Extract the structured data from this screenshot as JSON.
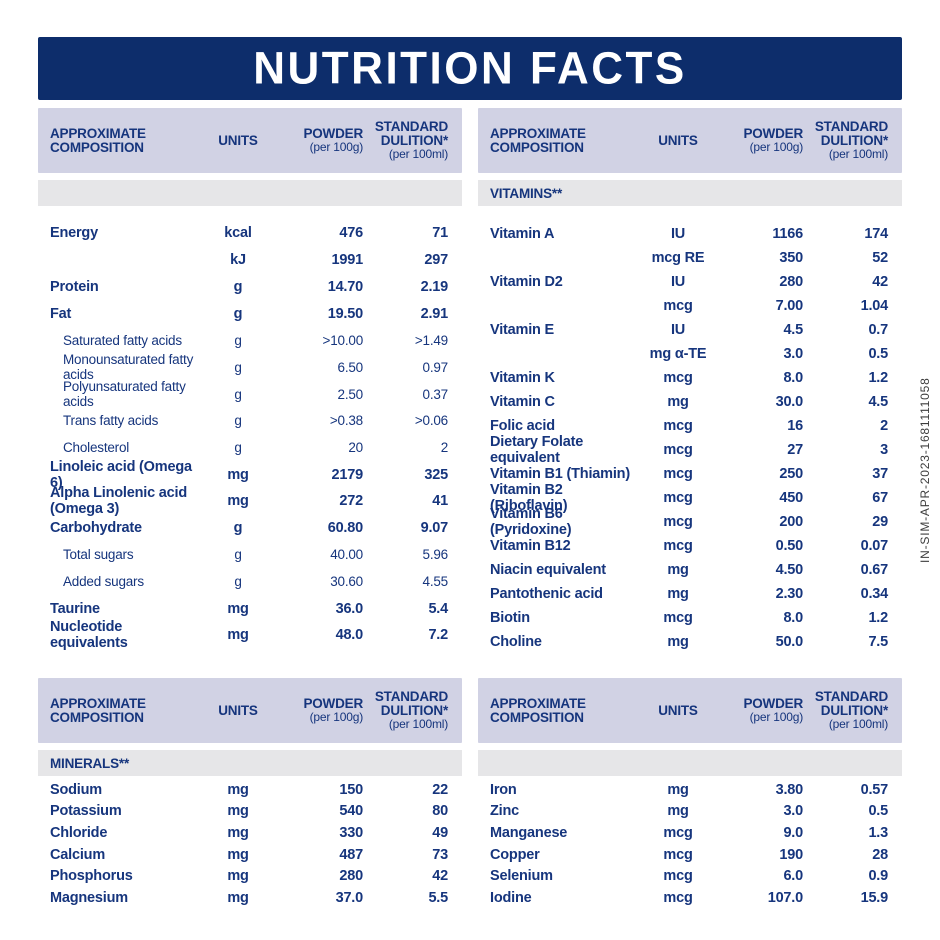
{
  "title": "NUTRITION FACTS",
  "side_code": "IN-SIM-APR-2023-1681111058",
  "colors": {
    "banner_bg": "#0d2d6b",
    "banner_text": "#ffffff",
    "table_header_bg": "#d1d2e4",
    "section_band_bg": "#e6e6e8",
    "text": "#16357d",
    "side_code_text": "#3d3d3d"
  },
  "header": {
    "approximate_composition": "APPROXIMATE COMPOSITION",
    "units": "UNITS",
    "powder_line1": "POWDER",
    "powder_line2": "(per 100g)",
    "dilution_line1": "STANDARD",
    "dilution_line2": "DULITION*",
    "dilution_line3": "(per 100ml)"
  },
  "tables": {
    "top_left": {
      "section_label": "",
      "rows": [
        {
          "name": "Energy",
          "unit": "kcal",
          "powder": "476",
          "dilution": "71",
          "style": "main"
        },
        {
          "name": "",
          "unit": "kJ",
          "powder": "1991",
          "dilution": "297",
          "style": "main"
        },
        {
          "name": "Protein",
          "unit": "g",
          "powder": "14.70",
          "dilution": "2.19",
          "style": "main"
        },
        {
          "name": "Fat",
          "unit": "g",
          "powder": "19.50",
          "dilution": "2.91",
          "style": "main"
        },
        {
          "name": "Saturated fatty acids",
          "unit": "g",
          "powder": ">10.00",
          "dilution": ">1.49",
          "style": "sub"
        },
        {
          "name": "Monounsaturated fatty acids",
          "unit": "g",
          "powder": "6.50",
          "dilution": "0.97",
          "style": "sub"
        },
        {
          "name": "Polyunsaturated fatty acids",
          "unit": "g",
          "powder": "2.50",
          "dilution": "0.37",
          "style": "sub"
        },
        {
          "name": "Trans fatty acids",
          "unit": "g",
          "powder": ">0.38",
          "dilution": ">0.06",
          "style": "sub"
        },
        {
          "name": "Cholesterol",
          "unit": "g",
          "powder": "20",
          "dilution": "2",
          "style": "sub"
        },
        {
          "name": "Linoleic acid (Omega 6)",
          "unit": "mg",
          "powder": "2179",
          "dilution": "325",
          "style": "main"
        },
        {
          "name": "Alpha Linolenic acid (Omega 3)",
          "unit": "mg",
          "powder": "272",
          "dilution": "41",
          "style": "main"
        },
        {
          "name": "Carbohydrate",
          "unit": "g",
          "powder": "60.80",
          "dilution": "9.07",
          "style": "main"
        },
        {
          "name": "Total sugars",
          "unit": "g",
          "powder": "40.00",
          "dilution": "5.96",
          "style": "sub"
        },
        {
          "name": "Added sugars",
          "unit": "g",
          "powder": "30.60",
          "dilution": "4.55",
          "style": "sub"
        },
        {
          "name": "Taurine",
          "unit": "mg",
          "powder": "36.0",
          "dilution": "5.4",
          "style": "main"
        },
        {
          "name": "Nucleotide equivalents",
          "unit": "mg",
          "powder": "48.0",
          "dilution": "7.2",
          "style": "main"
        }
      ]
    },
    "top_right": {
      "section_label": "VITAMINS**",
      "rows": [
        {
          "name": "Vitamin A",
          "unit": "IU",
          "powder": "1166",
          "dilution": "174",
          "style": "main"
        },
        {
          "name": "",
          "unit": "mcg RE",
          "powder": "350",
          "dilution": "52",
          "style": "main"
        },
        {
          "name": "Vitamin D2",
          "unit": "IU",
          "powder": "280",
          "dilution": "42",
          "style": "main"
        },
        {
          "name": "",
          "unit": "mcg",
          "powder": "7.00",
          "dilution": "1.04",
          "style": "main"
        },
        {
          "name": "Vitamin E",
          "unit": "IU",
          "powder": "4.5",
          "dilution": "0.7",
          "style": "main"
        },
        {
          "name": "",
          "unit": "mg α-TE",
          "powder": "3.0",
          "dilution": "0.5",
          "style": "main"
        },
        {
          "name": "Vitamin K",
          "unit": "mcg",
          "powder": "8.0",
          "dilution": "1.2",
          "style": "main"
        },
        {
          "name": "Vitamin C",
          "unit": "mg",
          "powder": "30.0",
          "dilution": "4.5",
          "style": "main"
        },
        {
          "name": "Folic acid",
          "unit": "mcg",
          "powder": "16",
          "dilution": "2",
          "style": "main"
        },
        {
          "name": "Dietary Folate equivalent",
          "unit": "mcg",
          "powder": "27",
          "dilution": "3",
          "style": "main"
        },
        {
          "name": "Vitamin B1 (Thiamin)",
          "unit": "mcg",
          "powder": "250",
          "dilution": "37",
          "style": "main"
        },
        {
          "name": "Vitamin B2 (Riboflavin)",
          "unit": "mcg",
          "powder": "450",
          "dilution": "67",
          "style": "main"
        },
        {
          "name": "Vitamin B6 (Pyridoxine)",
          "unit": "mcg",
          "powder": "200",
          "dilution": "29",
          "style": "main"
        },
        {
          "name": "Vitamin B12",
          "unit": "mcg",
          "powder": "0.50",
          "dilution": "0.07",
          "style": "main"
        },
        {
          "name": "Niacin equivalent",
          "unit": "mg",
          "powder": "4.50",
          "dilution": "0.67",
          "style": "main"
        },
        {
          "name": "Pantothenic acid",
          "unit": "mg",
          "powder": "2.30",
          "dilution": "0.34",
          "style": "main"
        },
        {
          "name": "Biotin",
          "unit": "mcg",
          "powder": "8.0",
          "dilution": "1.2",
          "style": "main"
        },
        {
          "name": "Choline",
          "unit": "mg",
          "powder": "50.0",
          "dilution": "7.5",
          "style": "main"
        }
      ]
    },
    "bottom_left": {
      "section_label": "MINERALS**",
      "rows": [
        {
          "name": "Sodium",
          "unit": "mg",
          "powder": "150",
          "dilution": "22",
          "style": "main"
        },
        {
          "name": "Potassium",
          "unit": "mg",
          "powder": "540",
          "dilution": "80",
          "style": "main"
        },
        {
          "name": "Chloride",
          "unit": "mg",
          "powder": "330",
          "dilution": "49",
          "style": "main"
        },
        {
          "name": "Calcium",
          "unit": "mg",
          "powder": "487",
          "dilution": "73",
          "style": "main"
        },
        {
          "name": "Phosphorus",
          "unit": "mg",
          "powder": "280",
          "dilution": "42",
          "style": "main"
        },
        {
          "name": "Magnesium",
          "unit": "mg",
          "powder": "37.0",
          "dilution": "5.5",
          "style": "main"
        }
      ]
    },
    "bottom_right": {
      "section_label": "",
      "rows": [
        {
          "name": "Iron",
          "unit": "mg",
          "powder": "3.80",
          "dilution": "0.57",
          "style": "main"
        },
        {
          "name": "Zinc",
          "unit": "mg",
          "powder": "3.0",
          "dilution": "0.5",
          "style": "main"
        },
        {
          "name": "Manganese",
          "unit": "mcg",
          "powder": "9.0",
          "dilution": "1.3",
          "style": "main"
        },
        {
          "name": "Copper",
          "unit": "mcg",
          "powder": "190",
          "dilution": "28",
          "style": "main"
        },
        {
          "name": "Selenium",
          "unit": "mcg",
          "powder": "6.0",
          "dilution": "0.9",
          "style": "main"
        },
        {
          "name": "Iodine",
          "unit": "mcg",
          "powder": "107.0",
          "dilution": "15.9",
          "style": "main"
        }
      ]
    }
  }
}
